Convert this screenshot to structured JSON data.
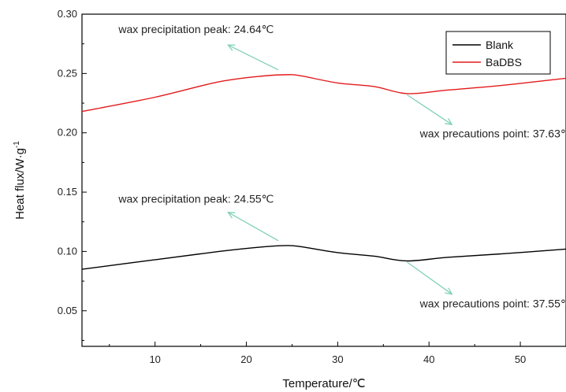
{
  "chart_data": {
    "type": "line",
    "xlabel": "Temperature/℃",
    "ylabel": "Heat flux/W·g",
    "ylabel_superscript": "-1",
    "xlim": [
      2,
      55
    ],
    "ylim": [
      0.02,
      0.3
    ],
    "xticks": [
      10,
      20,
      30,
      40,
      50
    ],
    "xtick_labels": [
      "10",
      "20",
      "30",
      "40",
      "50"
    ],
    "yticks": [
      0.05,
      0.1,
      0.15,
      0.2,
      0.25,
      0.3
    ],
    "ytick_labels": [
      "0.05",
      "0.10",
      "0.15",
      "0.20",
      "0.25",
      "0.30"
    ],
    "grid": false,
    "legend_position": "top-right",
    "series": [
      {
        "name": "Blank",
        "color": "#000000",
        "x": [
          2,
          10,
          17,
          22,
          24.55,
          26,
          30,
          34,
          37.55,
          42,
          48,
          55
        ],
        "y": [
          0.085,
          0.093,
          0.1,
          0.104,
          0.105,
          0.104,
          0.099,
          0.096,
          0.092,
          0.095,
          0.098,
          0.102
        ]
      },
      {
        "name": "BaDBS",
        "color": "#e31a1c",
        "x": [
          2,
          10,
          17,
          22,
          24.64,
          26,
          30,
          34,
          37.63,
          42,
          48,
          55
        ],
        "y": [
          0.218,
          0.23,
          0.243,
          0.248,
          0.249,
          0.248,
          0.242,
          0.239,
          0.233,
          0.236,
          0.24,
          0.246
        ]
      }
    ],
    "annotations": [
      {
        "text": "wax precipitation peak: 24.64℃",
        "arrow_from": [
          23.5,
          0.253
        ],
        "arrow_to": [
          18,
          0.274
        ],
        "text_at": [
          6,
          0.284
        ]
      },
      {
        "text": "wax precautions point: 37.63℃",
        "arrow_from": [
          37.6,
          0.232
        ],
        "arrow_to": [
          42.5,
          0.207
        ],
        "text_at": [
          39,
          0.196
        ]
      },
      {
        "text": "wax precipitation peak: 24.55℃",
        "arrow_from": [
          23.5,
          0.109
        ],
        "arrow_to": [
          18,
          0.133
        ],
        "text_at": [
          6,
          0.141
        ]
      },
      {
        "text": "wax precautions point: 37.55℃",
        "arrow_from": [
          37.6,
          0.091
        ],
        "arrow_to": [
          42.5,
          0.064
        ],
        "text_at": [
          39,
          0.053
        ]
      }
    ],
    "annotation_arrow_color": "#7fd1b9"
  }
}
